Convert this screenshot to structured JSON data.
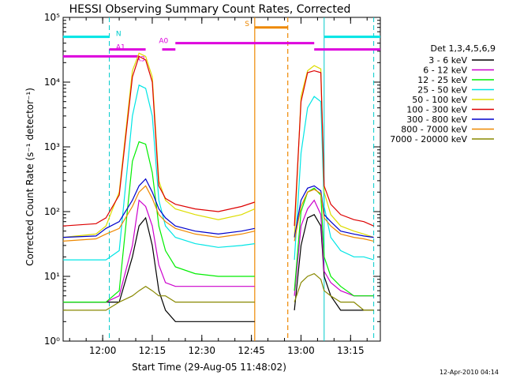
{
  "chart_data": {
    "type": "line",
    "title": "HESSI Observing Summary Count Rates, Corrected",
    "xlabel": "Start Time (29-Aug-05 11:48:02)",
    "ylabel": "Corrected Count Rate (s⁻¹ detector⁻¹)",
    "y_scale": "log",
    "xlim": [
      "11:48:02",
      "13:24:00"
    ],
    "ylim": [
      1,
      100000
    ],
    "x_ticks": [
      "12:00",
      "12:15",
      "12:30",
      "12:45",
      "13:00",
      "13:15"
    ],
    "y_ticks": [
      "10⁰",
      "10¹",
      "10²",
      "10³",
      "10⁴",
      "10⁵"
    ],
    "legend_title": "Det 1,3,4,5,6,9",
    "legend_position": "right",
    "footer": "12-Apr-2010 04:14",
    "x": [
      "11:48",
      "11:58",
      "12:01",
      "12:05",
      "12:09",
      "12:11",
      "12:13",
      "12:15",
      "12:17",
      "12:19",
      "12:22",
      "12:28",
      "12:35",
      "12:42",
      "12:46",
      "12:56",
      "12:58",
      "13:00",
      "13:02",
      "13:04",
      "13:06",
      "13:07",
      "13:09",
      "13:12",
      "13:16",
      "13:19",
      "13:22"
    ],
    "gaps": [
      {
        "start": "12:46",
        "end": "12:56"
      }
    ],
    "series": [
      {
        "name": "3 - 6 keV",
        "color": "#000000",
        "values": [
          4,
          4,
          4,
          4,
          20,
          60,
          80,
          30,
          6,
          3,
          2,
          2,
          2,
          2,
          2,
          null,
          3,
          30,
          80,
          90,
          60,
          10,
          5,
          3,
          3,
          3,
          3
        ]
      },
      {
        "name": "6 - 12 keV",
        "color": "#cc00cc",
        "values": [
          4,
          4,
          4,
          5,
          30,
          150,
          120,
          60,
          15,
          8,
          7,
          7,
          7,
          7,
          7,
          null,
          5,
          60,
          110,
          150,
          90,
          12,
          8,
          6,
          5,
          5,
          5
        ]
      },
      {
        "name": "12 - 25 keV",
        "color": "#00ee00",
        "values": [
          4,
          4,
          4,
          6,
          600,
          1200,
          1100,
          400,
          60,
          25,
          14,
          11,
          10,
          10,
          10,
          null,
          6,
          100,
          200,
          230,
          180,
          20,
          10,
          7,
          5,
          5,
          5
        ]
      },
      {
        "name": "25 - 50 keV",
        "color": "#00e5e5",
        "values": [
          18,
          18,
          18,
          25,
          3000,
          9000,
          8000,
          3000,
          150,
          60,
          40,
          32,
          28,
          30,
          32,
          null,
          18,
          800,
          4000,
          6000,
          5000,
          120,
          40,
          25,
          20,
          20,
          18
        ]
      },
      {
        "name": "50 - 100 keV",
        "color": "#dddd00",
        "values": [
          40,
          45,
          60,
          200,
          15000,
          28000,
          25000,
          12000,
          300,
          150,
          110,
          90,
          75,
          90,
          110,
          null,
          40,
          6000,
          15000,
          18000,
          16000,
          200,
          90,
          60,
          50,
          45,
          40
        ]
      },
      {
        "name": "100 - 300 keV",
        "color": "#dd0000",
        "values": [
          60,
          65,
          80,
          180,
          12000,
          25000,
          22000,
          10000,
          250,
          160,
          130,
          110,
          100,
          120,
          140,
          null,
          60,
          5000,
          14000,
          15000,
          14000,
          250,
          130,
          90,
          75,
          70,
          60
        ]
      },
      {
        "name": "300 - 800 keV",
        "color": "#0000cc",
        "values": [
          40,
          42,
          55,
          70,
          150,
          250,
          320,
          200,
          110,
          80,
          60,
          50,
          45,
          50,
          55,
          null,
          40,
          150,
          230,
          250,
          210,
          90,
          70,
          50,
          45,
          42,
          40
        ]
      },
      {
        "name": "800 - 7000 keV",
        "color": "#ee8800",
        "values": [
          35,
          38,
          45,
          55,
          120,
          200,
          250,
          160,
          90,
          70,
          55,
          45,
          40,
          45,
          50,
          null,
          35,
          120,
          200,
          220,
          190,
          80,
          60,
          45,
          40,
          38,
          35
        ]
      },
      {
        "name": "7000 - 20000 keV",
        "color": "#888800",
        "values": [
          3,
          3,
          3,
          4,
          5,
          6,
          7,
          6,
          5,
          5,
          4,
          4,
          4,
          4,
          4,
          null,
          4,
          8,
          10,
          11,
          9,
          6,
          5,
          4,
          4,
          3,
          3
        ]
      }
    ],
    "annotations": {
      "attenuator_labels": [
        "A1",
        "A3",
        "A0"
      ],
      "night_label": "N",
      "saa_label": "S"
    }
  }
}
